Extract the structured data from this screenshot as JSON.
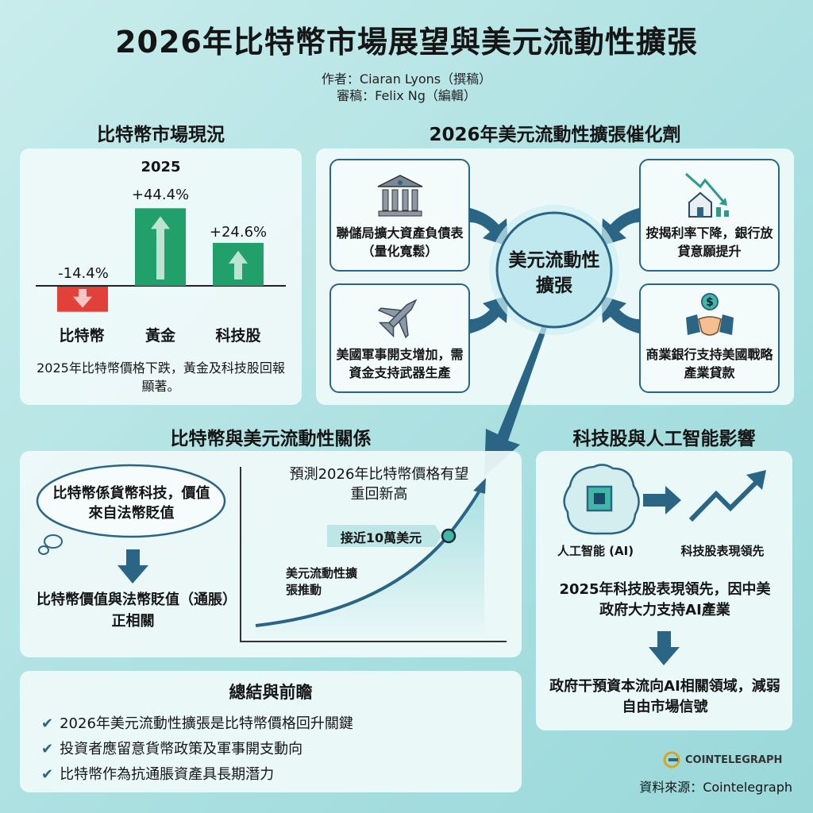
{
  "header": {
    "title": "2026年比特幣市場展望與美元流動性擴張",
    "author": "作者：Ciaran Lyons（撰稿）",
    "editor": "審稿：Felix Ng（編輯）"
  },
  "market": {
    "heading": "比特幣市場現況",
    "caption": "2025年比特幣價格下跌，黃金及科技股回報顯著。"
  },
  "chart_data": {
    "type": "bar",
    "title": "2025",
    "categories": [
      "比特幣",
      "黃金",
      "科技股"
    ],
    "values": [
      -14.4,
      44.4,
      24.6
    ],
    "value_labels": [
      "-14.4%",
      "+44.4%",
      "+24.6%"
    ],
    "colors": {
      "negative": "#e2413a",
      "positive": "#22a06b"
    }
  },
  "catalysts": {
    "heading": "2026年美元流動性擴張催化劑",
    "center": "美元流動性擴張",
    "items": [
      {
        "icon": "bank-icon",
        "text": "聯儲局擴大資產負債表（量化寬鬆）"
      },
      {
        "icon": "house-rate-down-icon",
        "text": "按揭利率下降，銀行放貸意願提升"
      },
      {
        "icon": "fighter-jet-icon",
        "text": "美國軍事開支增加，需資金支持武器生產"
      },
      {
        "icon": "handshake-dollar-icon",
        "text": "商業銀行支持美國戰略產業貸款"
      }
    ]
  },
  "relation": {
    "heading": "比特幣與美元流動性關係",
    "thought": "比特幣係貨幣科技，價值來自法幣貶值",
    "conclusion": "比特幣價值與法幣貶值（通脹）正相關",
    "forecast": "預測2026年比特幣價格有望重回新高",
    "marker": "接近10萬美元",
    "driver": "美元流動性擴張推動"
  },
  "tech": {
    "heading": "科技股與人工智能影響",
    "ai_label": "人工智能 (AI)",
    "stock_label": "科技股表現領先",
    "text1": "2025年科技股表現領先，因中美政府大力支持AI產業",
    "text2": "政府干預資本流向AI相關領域，減弱自由市場信號"
  },
  "summary": {
    "heading": "總結與前瞻",
    "items": [
      "2026年美元流動性擴張是比特幣價格回升關鍵",
      "投資者應留意貨幣政策及軍事開支動向",
      "比特幣作為抗通脹資產具長期潛力"
    ]
  },
  "footer": {
    "logo": "COINTELEGRAPH",
    "source": "資料來源：Cointelegraph"
  },
  "colors": {
    "accent": "#2a6585",
    "teal": "#3fb8a8"
  }
}
